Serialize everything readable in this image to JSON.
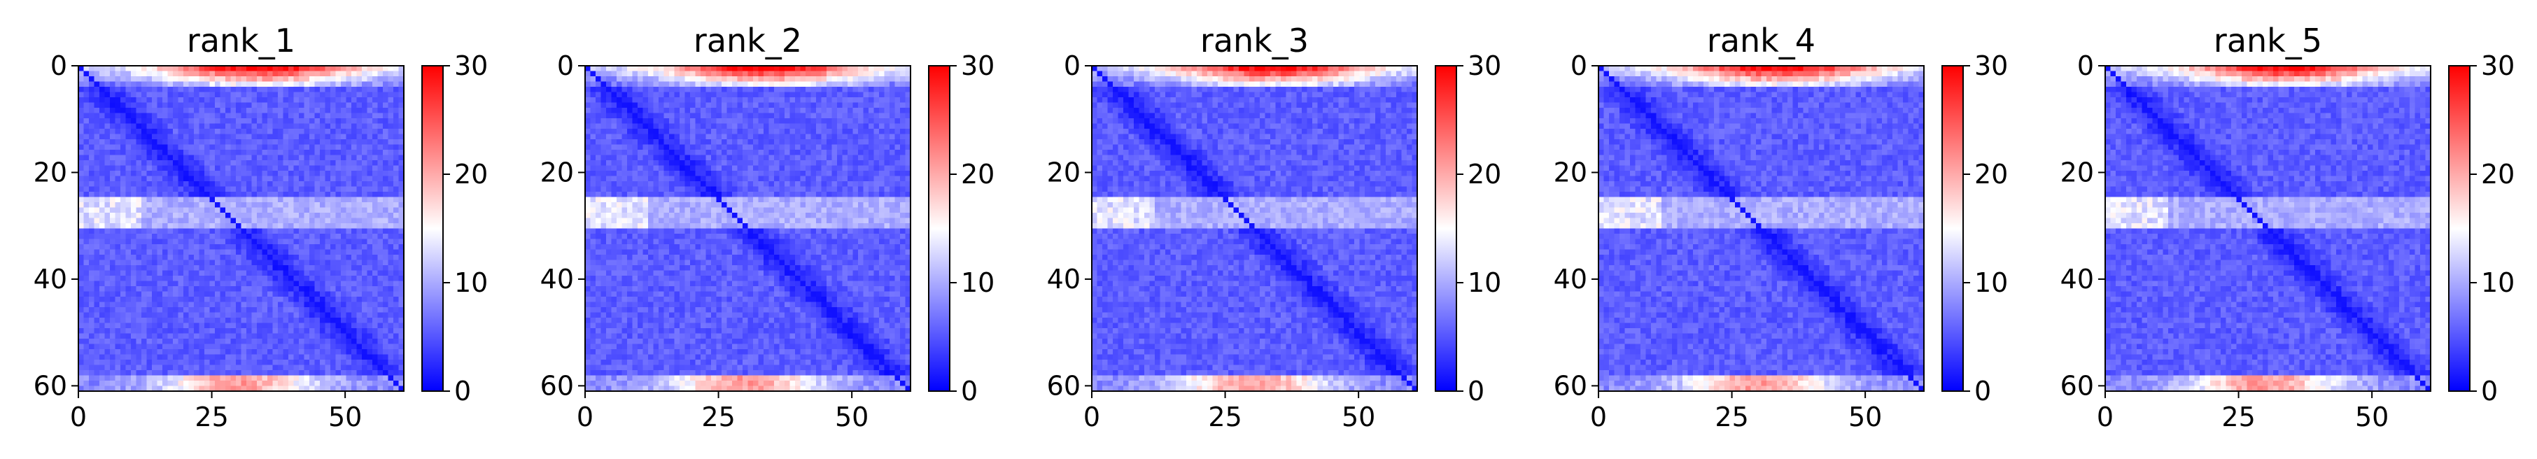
{
  "chart_data": [
    {
      "type": "heatmap",
      "title": "rank_1",
      "size": 62,
      "xlim": [
        0,
        61
      ],
      "ylim": [
        61,
        0
      ],
      "xticks": [
        0,
        25,
        50
      ],
      "yticks": [
        0,
        20,
        40,
        60
      ],
      "colorbar": {
        "range": [
          0,
          30
        ],
        "ticks": [
          0,
          10,
          20,
          30
        ]
      },
      "colormap": [
        "#0000ff",
        "#ffffff",
        "#ff0000"
      ],
      "pattern": {
        "top_band_rows": [
          0,
          3
        ],
        "top_band_peak": 28,
        "bottom_band_rows": [
          59,
          61
        ],
        "bottom_band_peak": 22,
        "mid_band_rows": [
          25,
          30
        ],
        "mid_band_peak": 14,
        "background": 4,
        "diagonal": 1
      }
    },
    {
      "type": "heatmap",
      "title": "rank_2",
      "size": 62,
      "xlim": [
        0,
        61
      ],
      "ylim": [
        61,
        0
      ],
      "xticks": [
        0,
        25,
        50
      ],
      "yticks": [
        0,
        20,
        40,
        60
      ],
      "colorbar": {
        "range": [
          0,
          30
        ],
        "ticks": [
          0,
          10,
          20,
          30
        ]
      },
      "colormap": [
        "#0000ff",
        "#ffffff",
        "#ff0000"
      ],
      "pattern": {
        "top_band_rows": [
          0,
          3
        ],
        "top_band_peak": 28,
        "bottom_band_rows": [
          59,
          61
        ],
        "bottom_band_peak": 22,
        "mid_band_rows": [
          25,
          30
        ],
        "mid_band_peak": 14,
        "background": 4,
        "diagonal": 1
      }
    },
    {
      "type": "heatmap",
      "title": "rank_3",
      "size": 62,
      "xlim": [
        0,
        61
      ],
      "ylim": [
        61,
        0
      ],
      "xticks": [
        0,
        25,
        50
      ],
      "yticks": [
        0,
        20,
        40,
        60
      ],
      "colorbar": {
        "range": [
          0,
          30
        ],
        "ticks": [
          0,
          10,
          20,
          30
        ]
      },
      "colormap": [
        "#0000ff",
        "#ffffff",
        "#ff0000"
      ],
      "pattern": {
        "top_band_rows": [
          0,
          3
        ],
        "top_band_peak": 28,
        "bottom_band_rows": [
          59,
          61
        ],
        "bottom_band_peak": 22,
        "mid_band_rows": [
          25,
          30
        ],
        "mid_band_peak": 14,
        "background": 4,
        "diagonal": 1
      }
    },
    {
      "type": "heatmap",
      "title": "rank_4",
      "size": 62,
      "xlim": [
        0,
        61
      ],
      "ylim": [
        61,
        0
      ],
      "xticks": [
        0,
        25,
        50
      ],
      "yticks": [
        0,
        20,
        40,
        60
      ],
      "colorbar": {
        "range": [
          0,
          30
        ],
        "ticks": [
          0,
          10,
          20,
          30
        ]
      },
      "colormap": [
        "#0000ff",
        "#ffffff",
        "#ff0000"
      ],
      "pattern": {
        "top_band_rows": [
          0,
          3
        ],
        "top_band_peak": 28,
        "bottom_band_rows": [
          59,
          61
        ],
        "bottom_band_peak": 22,
        "mid_band_rows": [
          25,
          30
        ],
        "mid_band_peak": 14,
        "background": 4,
        "diagonal": 1
      }
    },
    {
      "type": "heatmap",
      "title": "rank_5",
      "size": 62,
      "xlim": [
        0,
        61
      ],
      "ylim": [
        61,
        0
      ],
      "xticks": [
        0,
        25,
        50
      ],
      "yticks": [
        0,
        20,
        40,
        60
      ],
      "colorbar": {
        "range": [
          0,
          30
        ],
        "ticks": [
          0,
          10,
          20,
          30
        ]
      },
      "colormap": [
        "#0000ff",
        "#ffffff",
        "#ff0000"
      ],
      "pattern": {
        "top_band_rows": [
          0,
          3
        ],
        "top_band_peak": 28,
        "bottom_band_rows": [
          59,
          61
        ],
        "bottom_band_peak": 22,
        "mid_band_rows": [
          25,
          30
        ],
        "mid_band_peak": 14,
        "background": 4,
        "diagonal": 1
      }
    }
  ]
}
